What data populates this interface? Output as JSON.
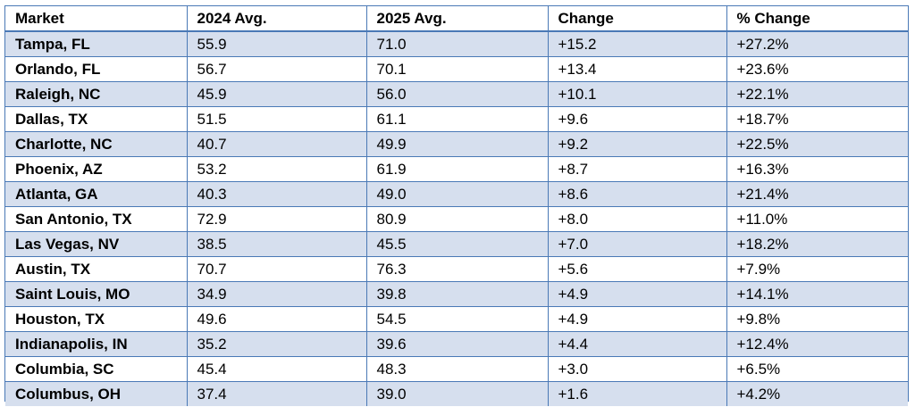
{
  "table": {
    "headers": [
      "Market",
      "2024 Avg.",
      "2025 Avg.",
      "Change",
      "% Change"
    ],
    "rows": [
      [
        "Tampa, FL",
        "55.9",
        "71.0",
        "+15.2",
        "+27.2%"
      ],
      [
        "Orlando, FL",
        "56.7",
        "70.1",
        "+13.4",
        "+23.6%"
      ],
      [
        "Raleigh, NC",
        "45.9",
        "56.0",
        "+10.1",
        "+22.1%"
      ],
      [
        "Dallas, TX",
        "51.5",
        "61.1",
        "+9.6",
        "+18.7%"
      ],
      [
        "Charlotte, NC",
        "40.7",
        "49.9",
        "+9.2",
        "+22.5%"
      ],
      [
        "Phoenix, AZ",
        "53.2",
        "61.9",
        "+8.7",
        "+16.3%"
      ],
      [
        "Atlanta, GA",
        "40.3",
        "49.0",
        "+8.6",
        "+21.4%"
      ],
      [
        "San Antonio, TX",
        "72.9",
        "80.9",
        "+8.0",
        "+11.0%"
      ],
      [
        "Las Vegas, NV",
        "38.5",
        "45.5",
        "+7.0",
        "+18.2%"
      ],
      [
        "Austin, TX",
        "70.7",
        "76.3",
        "+5.6",
        "+7.9%"
      ],
      [
        "Saint Louis, MO",
        "34.9",
        "39.8",
        "+4.9",
        "+14.1%"
      ],
      [
        "Houston, TX",
        "49.6",
        "54.5",
        "+4.9",
        "+9.8%"
      ],
      [
        "Indianapolis, IN",
        "35.2",
        "39.6",
        "+4.4",
        "+12.4%"
      ],
      [
        "Columbia, SC",
        "45.4",
        "48.3",
        "+3.0",
        "+6.5%"
      ],
      [
        "Columbus, OH",
        "37.4",
        "39.0",
        "+1.6",
        "+4.2%"
      ]
    ]
  },
  "colors": {
    "border": "#4a79b6",
    "row_shade": "#d6dfee",
    "row_plain": "#ffffff",
    "text": "#000000"
  }
}
